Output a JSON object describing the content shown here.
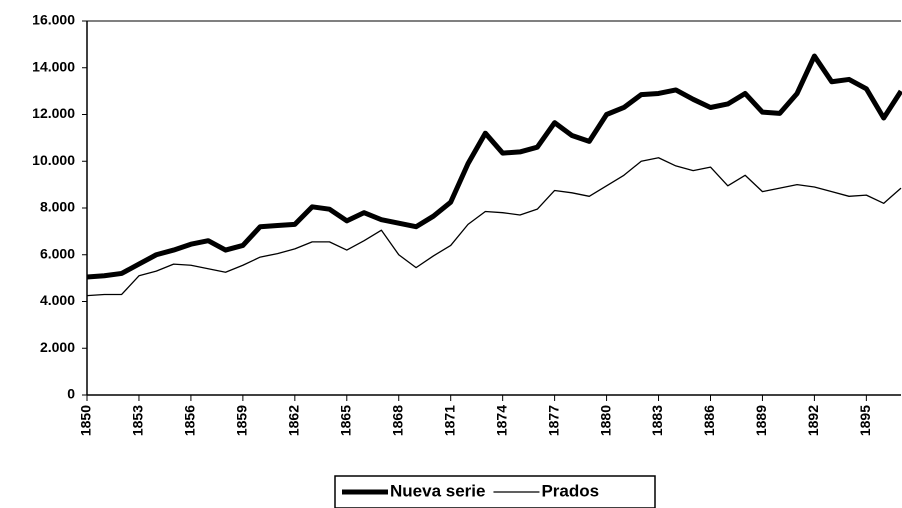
{
  "chart_data": {
    "type": "line",
    "x": [
      1850,
      1851,
      1852,
      1853,
      1854,
      1855,
      1856,
      1857,
      1858,
      1859,
      1860,
      1861,
      1862,
      1863,
      1864,
      1865,
      1866,
      1867,
      1868,
      1869,
      1870,
      1871,
      1872,
      1873,
      1874,
      1875,
      1876,
      1877,
      1878,
      1879,
      1880,
      1881,
      1882,
      1883,
      1884,
      1885,
      1886,
      1887,
      1888,
      1889,
      1890,
      1891,
      1892,
      1893,
      1894,
      1895,
      1896,
      1897
    ],
    "series": [
      {
        "name": "Nueva serie",
        "color": "#000000",
        "width": 5,
        "values": [
          5050,
          5100,
          5200,
          5600,
          6000,
          6200,
          6450,
          6600,
          6200,
          6400,
          7200,
          7250,
          7300,
          8050,
          7950,
          7450,
          7800,
          7500,
          7350,
          7200,
          7650,
          8250,
          9900,
          11200,
          10350,
          10400,
          10600,
          11650,
          11100,
          10850,
          12000,
          12300,
          12850,
          12900,
          13050,
          12650,
          12300,
          12450,
          12900,
          12100,
          12050,
          12900,
          14500,
          13400,
          13500,
          13100,
          11850,
          13000
        ]
      },
      {
        "name": "Prados",
        "color": "#000000",
        "width": 1.3,
        "values": [
          4250,
          4300,
          4300,
          5100,
          5300,
          5600,
          5550,
          5400,
          5250,
          5550,
          5900,
          6050,
          6250,
          6550,
          6550,
          6200,
          6600,
          7050,
          6000,
          5450,
          5950,
          6400,
          7300,
          7850,
          7800,
          7700,
          7950,
          8750,
          8650,
          8500,
          8950,
          9400,
          10000,
          10150,
          9800,
          9600,
          9750,
          8950,
          9400,
          8700,
          8850,
          9000,
          8900,
          8700,
          8500,
          8550,
          8200,
          8850
        ]
      }
    ],
    "xlim": [
      1850,
      1897
    ],
    "xticks": [
      1850,
      1853,
      1856,
      1859,
      1862,
      1865,
      1868,
      1871,
      1874,
      1877,
      1880,
      1883,
      1886,
      1889,
      1892,
      1895
    ],
    "ylim": [
      0,
      16000
    ],
    "yticks": [
      0,
      {
        "value": 2000,
        "label": "2.000"
      },
      {
        "value": 4000,
        "label": "4.000"
      },
      {
        "value": 6000,
        "label": "6.000"
      },
      {
        "value": 8000,
        "label": "8.000"
      },
      {
        "value": 10000,
        "label": "10.000"
      },
      {
        "value": 12000,
        "label": "12.000"
      },
      {
        "value": 14000,
        "label": "14.000"
      },
      {
        "value": 16000,
        "label": "16.000"
      }
    ],
    "legend": "bottom"
  }
}
